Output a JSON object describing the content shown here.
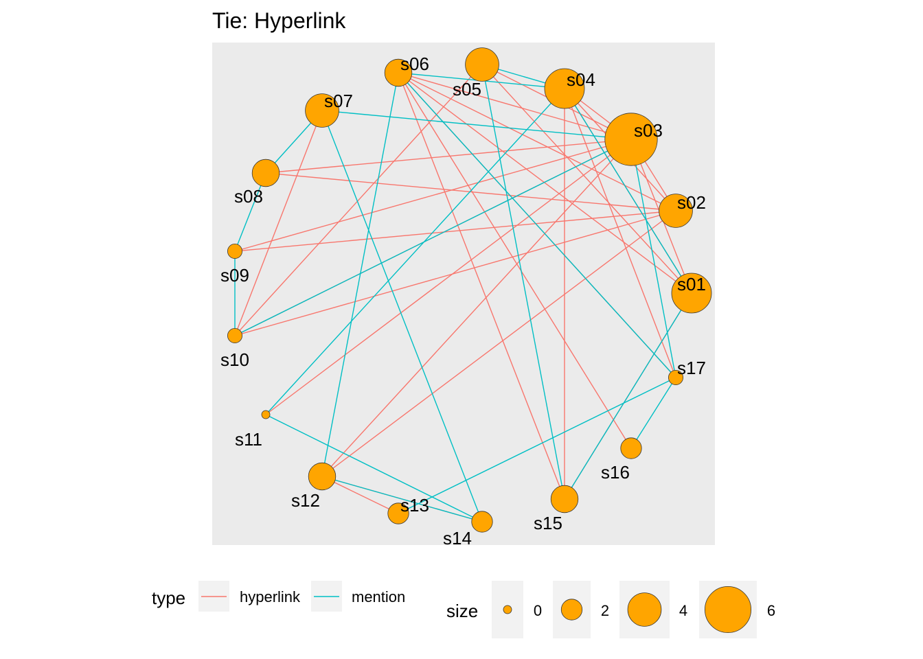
{
  "title": "Tie: Hyperlink",
  "colors": {
    "hyperlink": "#F8766D",
    "mention": "#00BFC4",
    "node_fill": "#FFA500",
    "node_stroke": "#333333",
    "panel_bg": "#EBEBEB",
    "legend_key_bg": "#F2F2F2"
  },
  "nodes": [
    {
      "id": "s01",
      "label": "s01",
      "size": 5
    },
    {
      "id": "s02",
      "label": "s02",
      "size": 4
    },
    {
      "id": "s03",
      "label": "s03",
      "size": 7
    },
    {
      "id": "s04",
      "label": "s04",
      "size": 5
    },
    {
      "id": "s05",
      "label": "s05",
      "size": 4
    },
    {
      "id": "s06",
      "label": "s06",
      "size": 3
    },
    {
      "id": "s07",
      "label": "s07",
      "size": 4
    },
    {
      "id": "s08",
      "label": "s08",
      "size": 3
    },
    {
      "id": "s09",
      "label": "s09",
      "size": 1
    },
    {
      "id": "s10",
      "label": "s10",
      "size": 1
    },
    {
      "id": "s11",
      "label": "s11",
      "size": 0
    },
    {
      "id": "s12",
      "label": "s12",
      "size": 3
    },
    {
      "id": "s13",
      "label": "s13",
      "size": 2
    },
    {
      "id": "s14",
      "label": "s14",
      "size": 2
    },
    {
      "id": "s15",
      "label": "s15",
      "size": 3
    },
    {
      "id": "s16",
      "label": "s16",
      "size": 2
    },
    {
      "id": "s17",
      "label": "s17",
      "size": 1
    }
  ],
  "edges": [
    {
      "from": "s03",
      "to": "s04",
      "type": "hyperlink"
    },
    {
      "from": "s03",
      "to": "s05",
      "type": "hyperlink"
    },
    {
      "from": "s03",
      "to": "s06",
      "type": "hyperlink"
    },
    {
      "from": "s03",
      "to": "s08",
      "type": "hyperlink"
    },
    {
      "from": "s03",
      "to": "s10",
      "type": "hyperlink"
    },
    {
      "from": "s03",
      "to": "s12",
      "type": "hyperlink"
    },
    {
      "from": "s03",
      "to": "s11",
      "type": "hyperlink"
    },
    {
      "from": "s03",
      "to": "s01",
      "type": "hyperlink"
    },
    {
      "from": "s03",
      "to": "s02",
      "type": "hyperlink"
    },
    {
      "from": "s04",
      "to": "s02",
      "type": "hyperlink"
    },
    {
      "from": "s04",
      "to": "s01",
      "type": "hyperlink"
    },
    {
      "from": "s04",
      "to": "s15",
      "type": "hyperlink"
    },
    {
      "from": "s05",
      "to": "s01",
      "type": "hyperlink"
    },
    {
      "from": "s05",
      "to": "s10",
      "type": "hyperlink"
    },
    {
      "from": "s06",
      "to": "s01",
      "type": "hyperlink"
    },
    {
      "from": "s06",
      "to": "s02",
      "type": "hyperlink"
    },
    {
      "from": "s06",
      "to": "s15",
      "type": "hyperlink"
    },
    {
      "from": "s06",
      "to": "s16",
      "type": "hyperlink"
    },
    {
      "from": "s07",
      "to": "s10",
      "type": "hyperlink"
    },
    {
      "from": "s08",
      "to": "s02",
      "type": "hyperlink"
    },
    {
      "from": "s09",
      "to": "s03",
      "type": "hyperlink"
    },
    {
      "from": "s09",
      "to": "s02",
      "type": "hyperlink"
    },
    {
      "from": "s10",
      "to": "s02",
      "type": "hyperlink"
    },
    {
      "from": "s12",
      "to": "s13",
      "type": "hyperlink"
    },
    {
      "from": "s12",
      "to": "s14",
      "type": "hyperlink"
    },
    {
      "from": "s12",
      "to": "s02",
      "type": "hyperlink"
    },
    {
      "from": "s17",
      "to": "s04",
      "type": "hyperlink"
    },
    {
      "from": "s17",
      "to": "s06",
      "type": "hyperlink"
    },
    {
      "from": "s15",
      "to": "s01",
      "type": "hyperlink"
    },
    {
      "from": "s05",
      "to": "s04",
      "type": "mention"
    },
    {
      "from": "s05",
      "to": "s15",
      "type": "mention"
    },
    {
      "from": "s06",
      "to": "s04",
      "type": "mention"
    },
    {
      "from": "s06",
      "to": "s12",
      "type": "mention"
    },
    {
      "from": "s06",
      "to": "s17",
      "type": "mention"
    },
    {
      "from": "s07",
      "to": "s08",
      "type": "mention"
    },
    {
      "from": "s07",
      "to": "s03",
      "type": "mention"
    },
    {
      "from": "s07",
      "to": "s14",
      "type": "mention"
    },
    {
      "from": "s08",
      "to": "s09",
      "type": "mention"
    },
    {
      "from": "s09",
      "to": "s10",
      "type": "mention"
    },
    {
      "from": "s10",
      "to": "s03",
      "type": "mention"
    },
    {
      "from": "s11",
      "to": "s04",
      "type": "mention"
    },
    {
      "from": "s11",
      "to": "s14",
      "type": "mention"
    },
    {
      "from": "s12",
      "to": "s14",
      "type": "mention"
    },
    {
      "from": "s13",
      "to": "s17",
      "type": "mention"
    },
    {
      "from": "s04",
      "to": "s01",
      "type": "mention"
    },
    {
      "from": "s03",
      "to": "s17",
      "type": "mention"
    },
    {
      "from": "s16",
      "to": "s17",
      "type": "mention"
    },
    {
      "from": "s01",
      "to": "s15",
      "type": "mention"
    }
  ],
  "legend": {
    "type_title": "type",
    "type_items": [
      {
        "key": "hyperlink",
        "label": "hyperlink"
      },
      {
        "key": "mention",
        "label": "mention"
      }
    ],
    "size_title": "size",
    "size_items": [
      {
        "value": 0,
        "label": "0"
      },
      {
        "value": 2,
        "label": "2"
      },
      {
        "value": 4,
        "label": "4"
      },
      {
        "value": 6,
        "label": "6"
      }
    ]
  }
}
